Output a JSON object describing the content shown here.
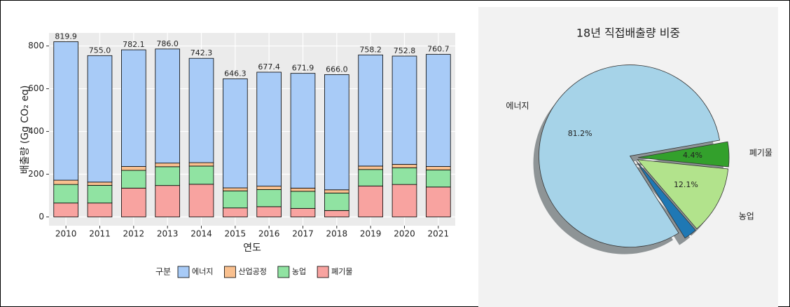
{
  "chart_data": [
    {
      "type": "bar",
      "stacked": true,
      "y_label": "배출량 (Gg CO₂ eq)",
      "x_label": "연도",
      "legend_title": "구분",
      "categories": [
        "2010",
        "2011",
        "2012",
        "2013",
        "2014",
        "2015",
        "2016",
        "2017",
        "2018",
        "2019",
        "2020",
        "2021"
      ],
      "series": [
        {
          "name": "폐기물",
          "color": "#f8a3a0",
          "values": [
            65,
            65,
            135,
            147,
            153,
            42,
            48,
            40,
            30,
            145,
            152,
            140
          ]
        },
        {
          "name": "농업",
          "color": "#90e3a2",
          "values": [
            87,
            83,
            83,
            88,
            85,
            80,
            80,
            80,
            82,
            77,
            78,
            80
          ]
        },
        {
          "name": "산업공정",
          "color": "#f9c08f",
          "values": [
            20,
            15,
            18,
            17,
            16,
            14,
            16,
            15,
            15,
            16,
            16,
            16
          ]
        },
        {
          "name": "에너지",
          "color": "#a8cbf7",
          "values": [
            647.9,
            592.0,
            546.1,
            534.0,
            488.3,
            510.3,
            533.4,
            536.9,
            539.0,
            520.2,
            506.8,
            524.7
          ]
        }
      ],
      "totals": [
        819.9,
        755.0,
        782.1,
        786.0,
        742.3,
        646.3,
        677.4,
        671.9,
        666.0,
        758.2,
        752.8,
        760.7
      ],
      "total_labels": [
        "819.9",
        "755.0",
        "782.1",
        "786.0",
        "742.3",
        "646.3",
        "677.4",
        "671.9",
        "666.0",
        "758.2",
        "752.8",
        "760.7"
      ],
      "ylim": [
        -41,
        861
      ],
      "yticks": [
        0,
        200,
        400,
        600,
        800
      ],
      "grid": true
    },
    {
      "type": "pie",
      "title": "18년 직접배출량 비중",
      "categories": [
        "에너지",
        null,
        "농업",
        "폐기물"
      ],
      "values": [
        81.2,
        2.3,
        12.1,
        4.4
      ],
      "value_labels": [
        "81.2%",
        null,
        "12.1%",
        "4.4%"
      ],
      "colors": [
        "#a6d3e8",
        "#1f78b4",
        "#b2e38c",
        "#33a02c"
      ],
      "start_angle": 10,
      "shadow": true
    }
  ]
}
